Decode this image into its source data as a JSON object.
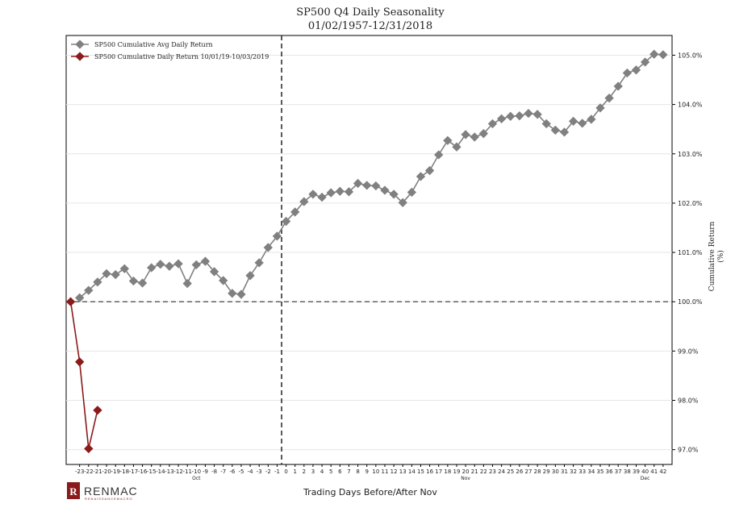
{
  "chart_data": {
    "type": "line",
    "title": "SP500 Q4 Daily Seasonality",
    "subtitle": "01/02/1957-12/31/2018",
    "xlabel": "Trading Days Before/After Nov",
    "ylabel_line1": "Cumulative Return",
    "ylabel_line2": "(%)",
    "xlim": [
      -24.5,
      43
    ],
    "ylim": [
      96.7,
      105.4
    ],
    "x_ticks": [
      -23,
      -22,
      -21,
      -20,
      -19,
      -18,
      -17,
      -16,
      -15,
      -14,
      -13,
      -12,
      -11,
      -10,
      -9,
      -8,
      -7,
      -6,
      -5,
      -4,
      -3,
      -2,
      -1,
      0,
      1,
      2,
      3,
      4,
      5,
      6,
      7,
      8,
      9,
      10,
      11,
      12,
      13,
      14,
      15,
      16,
      17,
      18,
      19,
      20,
      21,
      22,
      23,
      24,
      25,
      26,
      27,
      28,
      29,
      30,
      31,
      32,
      33,
      34,
      35,
      36,
      37,
      38,
      39,
      40,
      41,
      42
    ],
    "x_tick_labels": [
      "-23",
      "-22",
      "-21",
      "-20",
      "-19",
      "-18",
      "-17",
      "-16",
      "-15",
      "-14",
      "-13",
      "-12",
      "-11",
      "-10",
      "-9",
      "-8",
      "-7",
      "-6",
      "-5",
      "-4",
      "-3",
      "-2",
      "-1",
      "0",
      "1",
      "2",
      "3",
      "4",
      "5",
      "6",
      "7",
      "8",
      "9",
      "10",
      "11",
      "12",
      "13",
      "14",
      "15",
      "16",
      "17",
      "18",
      "19",
      "20",
      "21",
      "22",
      "23",
      "24",
      "25",
      "26",
      "27",
      "28",
      "29",
      "30",
      "31",
      "32",
      "33",
      "34",
      "35",
      "36",
      "37",
      "38",
      "39",
      "40",
      "41",
      "42"
    ],
    "month_labels": [
      {
        "text": "Oct",
        "x": -10
      },
      {
        "text": "Nov",
        "x": 20
      },
      {
        "text": "Dec",
        "x": 40
      }
    ],
    "y_ticks": [
      97,
      98,
      99,
      100,
      101,
      102,
      103,
      104,
      105
    ],
    "y_tick_labels": [
      "97.0%",
      "98.0%",
      "99.0%",
      "100.0%",
      "101.0%",
      "102.0%",
      "103.0%",
      "104.0%",
      "105.0%"
    ],
    "reference_hline": 100,
    "reference_vline": -0.5,
    "grid": true,
    "legend_position": "top-left",
    "series": [
      {
        "name": "SP500 Cumulative Avg Daily Return",
        "color": "#808080",
        "marker": "diamond",
        "x": [
          -23,
          -22,
          -21,
          -20,
          -19,
          -18,
          -17,
          -16,
          -15,
          -14,
          -13,
          -12,
          -11,
          -10,
          -9,
          -8,
          -7,
          -6,
          -5,
          -4,
          -3,
          -2,
          -1,
          0,
          1,
          2,
          3,
          4,
          5,
          6,
          7,
          8,
          9,
          10,
          11,
          12,
          13,
          14,
          15,
          16,
          17,
          18,
          19,
          20,
          21,
          22,
          23,
          24,
          25,
          26,
          27,
          28,
          29,
          30,
          31,
          32,
          33,
          34,
          35,
          36,
          37,
          38,
          39,
          40,
          41,
          42
        ],
        "y": [
          100.08,
          100.23,
          100.4,
          100.57,
          100.55,
          100.67,
          100.42,
          100.38,
          100.69,
          100.76,
          100.72,
          100.77,
          100.37,
          100.75,
          100.82,
          100.61,
          100.43,
          100.17,
          100.15,
          100.53,
          100.79,
          101.1,
          101.33,
          101.63,
          101.82,
          102.03,
          102.18,
          102.12,
          102.21,
          102.24,
          102.23,
          102.4,
          102.36,
          102.35,
          102.26,
          102.18,
          102.01,
          102.22,
          102.54,
          102.66,
          102.98,
          103.27,
          103.14,
          103.39,
          103.34,
          103.41,
          103.61,
          103.71,
          103.76,
          103.77,
          103.82,
          103.8,
          103.61,
          103.48,
          103.44,
          103.66,
          103.62,
          103.7,
          103.93,
          104.13,
          104.37,
          104.64,
          104.7,
          104.86,
          105.02,
          105.01
        ]
      },
      {
        "name": "SP500 Cumulative Daily Return 10/01/19-10/03/2019",
        "color": "#8b1a1a",
        "marker": "diamond",
        "x": [
          -24,
          -23,
          -22,
          -21
        ],
        "y": [
          100.0,
          98.78,
          97.02,
          97.8
        ]
      }
    ]
  },
  "logo": {
    "mark": "R",
    "name": "RENMAC",
    "tagline": "RENAISSANCEMACRO"
  }
}
